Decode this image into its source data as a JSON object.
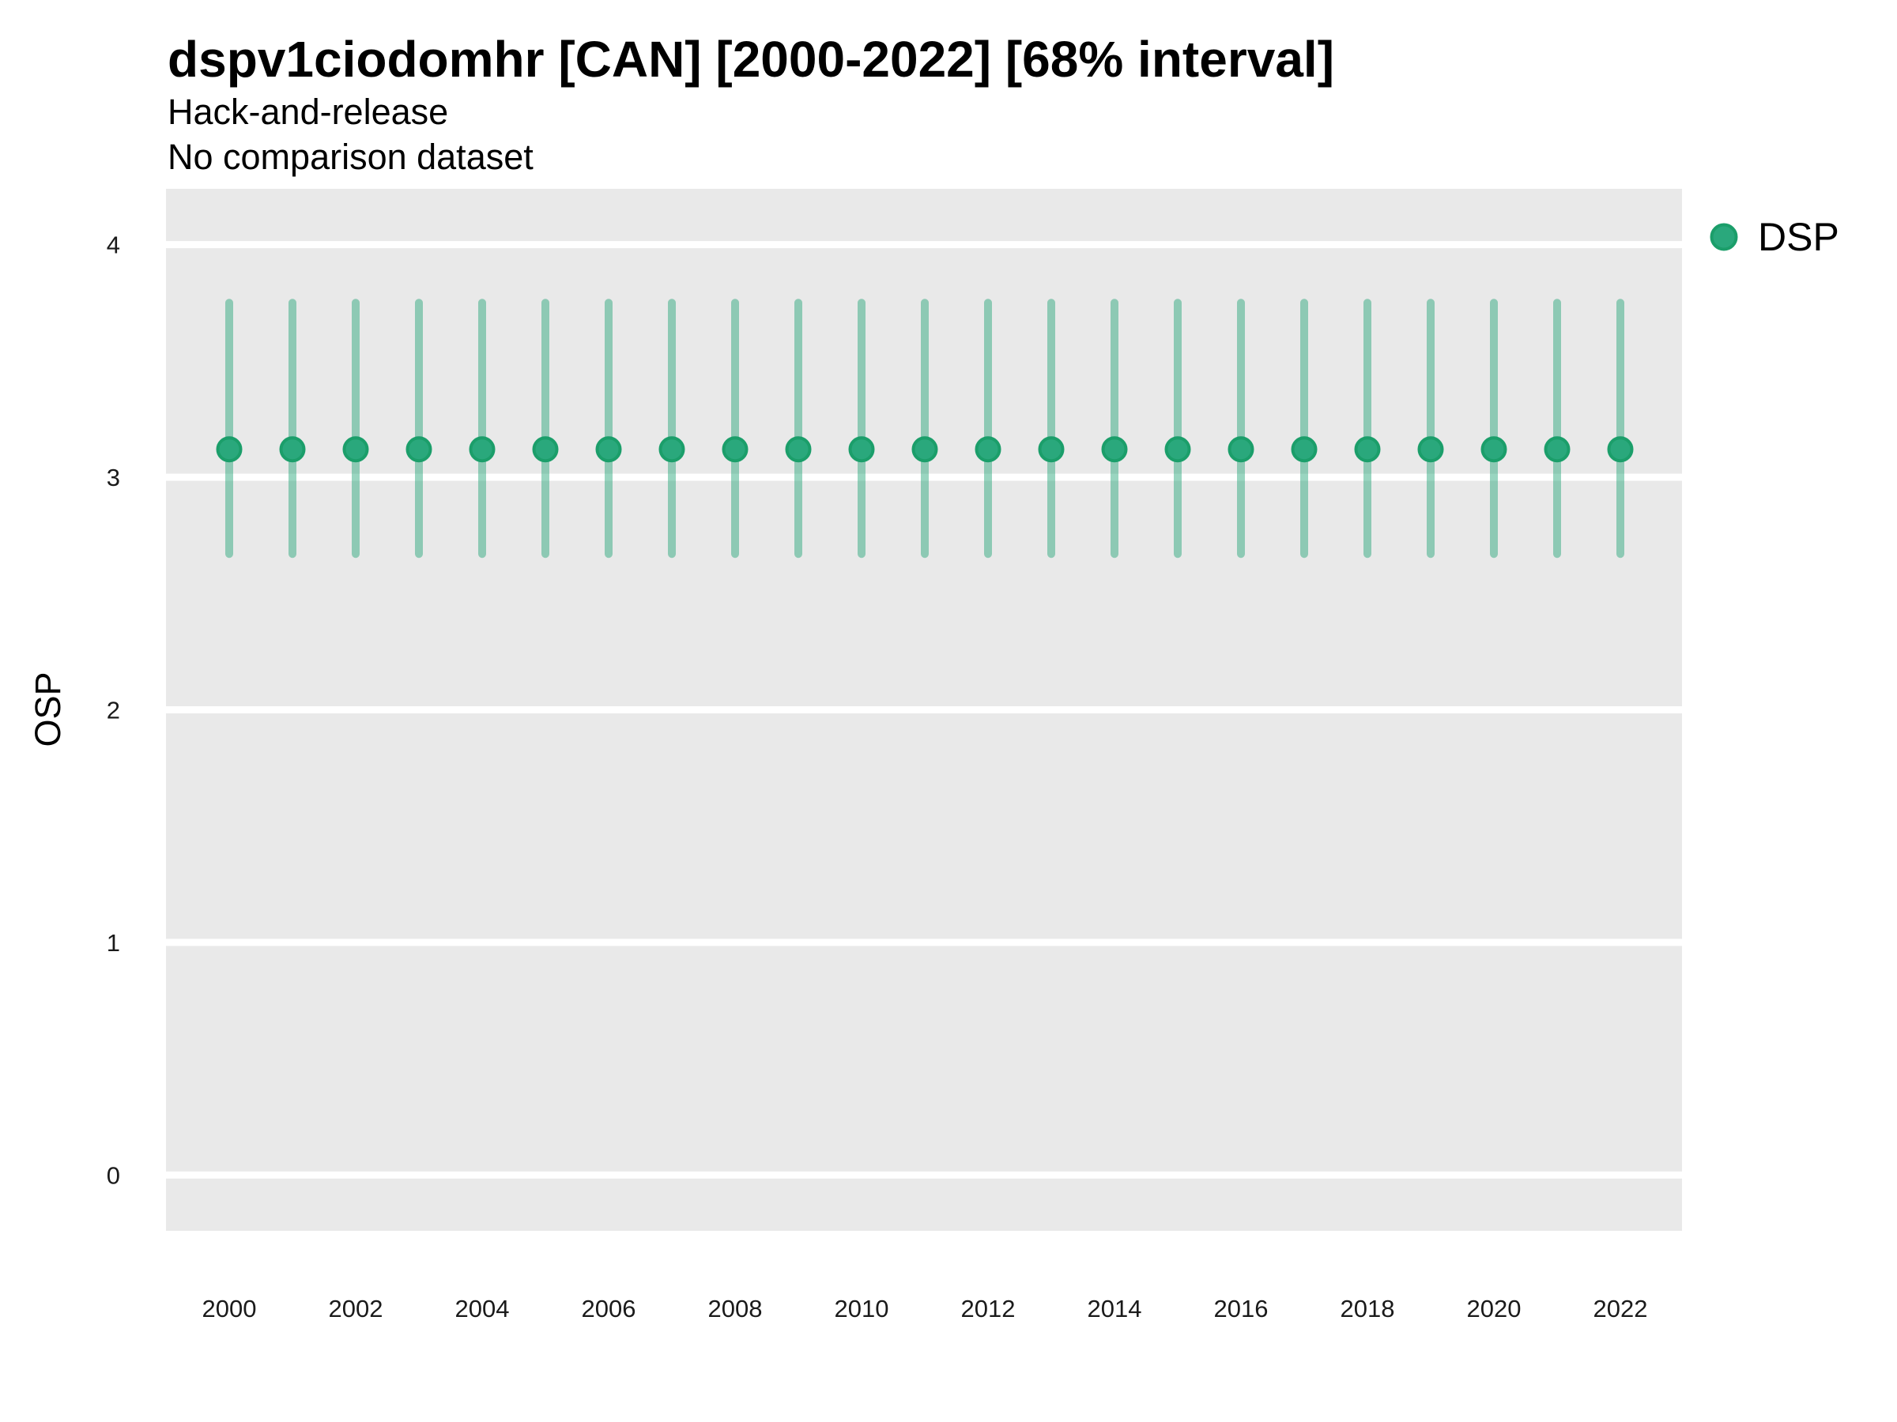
{
  "chart_data": {
    "type": "scatter",
    "title": "dspv1ciodomhr [CAN] [2000-2022] [68% interval]",
    "subtitle": [
      "Hack-and-release",
      "No comparison dataset"
    ],
    "xlabel": "",
    "ylabel": "OSP",
    "interval_level": "68%",
    "x": [
      2000,
      2001,
      2002,
      2003,
      2004,
      2005,
      2006,
      2007,
      2008,
      2009,
      2010,
      2011,
      2012,
      2013,
      2014,
      2015,
      2016,
      2017,
      2018,
      2019,
      2020,
      2021,
      2022
    ],
    "series": [
      {
        "name": "DSP",
        "point_estimates": [
          3.12,
          3.12,
          3.12,
          3.12,
          3.12,
          3.12,
          3.12,
          3.12,
          3.12,
          3.12,
          3.12,
          3.12,
          3.12,
          3.12,
          3.12,
          3.12,
          3.12,
          3.12,
          3.12,
          3.12,
          3.12,
          3.12,
          3.12
        ],
        "interval_low": [
          2.67,
          2.67,
          2.67,
          2.67,
          2.67,
          2.67,
          2.67,
          2.67,
          2.67,
          2.67,
          2.67,
          2.67,
          2.67,
          2.67,
          2.67,
          2.67,
          2.67,
          2.67,
          2.67,
          2.67,
          2.67,
          2.67,
          2.67
        ],
        "interval_high": [
          3.75,
          3.75,
          3.75,
          3.75,
          3.75,
          3.75,
          3.75,
          3.75,
          3.75,
          3.75,
          3.75,
          3.75,
          3.75,
          3.75,
          3.75,
          3.75,
          3.75,
          3.75,
          3.75,
          3.75,
          3.75,
          3.75,
          3.75
        ]
      }
    ],
    "xticks": [
      2000,
      2002,
      2004,
      2006,
      2008,
      2010,
      2012,
      2014,
      2016,
      2018,
      2020,
      2022
    ],
    "yticks": [
      4,
      3,
      2,
      1,
      0
    ],
    "ylim": [
      -0.24,
      4.24
    ],
    "grid": {
      "horizontal_major": true,
      "minor": false,
      "color": "#ffffff"
    },
    "legend": {
      "position": "right",
      "entries": [
        {
          "label": "DSP",
          "marker": "circle"
        }
      ]
    },
    "colors": {
      "panel_background": "#e9e9e9",
      "gridline": "#ffffff",
      "point_fill": "#2aa87c",
      "point_stroke": "#1b9e6a",
      "errorbar": "rgba(42,168,124,0.48)"
    }
  }
}
